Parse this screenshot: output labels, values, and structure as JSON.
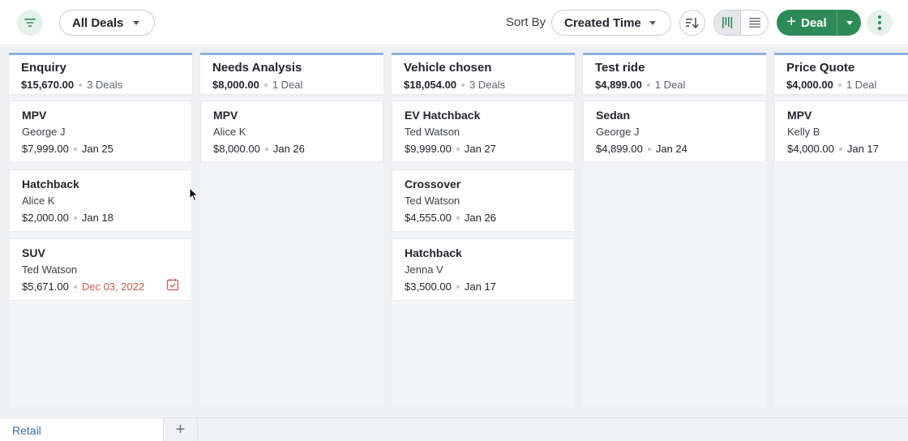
{
  "toolbar": {
    "filter_icon": "filter-funnel-icon",
    "view_label": "All Deals",
    "sort_by_label": "Sort By",
    "sort_value": "Created Time",
    "sort_direction_icon": "sort-descending-icon",
    "view_modes": [
      "kanban-view-icon",
      "list-view-icon"
    ],
    "add_deal_label": "Deal",
    "more_icon": "more-vertical-icon",
    "accent_color": "#2e8b57"
  },
  "board": {
    "column_accent": "#8fb1e0",
    "columns": [
      {
        "title": "Enquiry",
        "amount": "$15,670.00",
        "count": "3 Deals",
        "cards": [
          {
            "title": "MPV",
            "contact": "George J",
            "amount": "$7,999.00",
            "date": "Jan 25"
          },
          {
            "title": "Hatchback",
            "contact": "Alice K",
            "amount": "$2,000.00",
            "date": "Jan 18"
          },
          {
            "title": "SUV",
            "contact": "Ted Watson",
            "amount": "$5,671.00",
            "date": "Dec 03, 2022",
            "overdue": true
          }
        ]
      },
      {
        "title": "Needs Analysis",
        "amount": "$8,000.00",
        "count": "1 Deal",
        "cards": [
          {
            "title": "MPV",
            "contact": "Alice K",
            "amount": "$8,000.00",
            "date": "Jan 26"
          }
        ]
      },
      {
        "title": "Vehicle chosen",
        "amount": "$18,054.00",
        "count": "3 Deals",
        "cards": [
          {
            "title": "EV Hatchback",
            "contact": "Ted Watson",
            "amount": "$9,999.00",
            "date": "Jan 27"
          },
          {
            "title": "Crossover",
            "contact": "Ted Watson",
            "amount": "$4,555.00",
            "date": "Jan 26"
          },
          {
            "title": "Hatchback",
            "contact": "Jenna V",
            "amount": "$3,500.00",
            "date": "Jan 17"
          }
        ]
      },
      {
        "title": "Test ride",
        "amount": "$4,899.00",
        "count": "1 Deal",
        "cards": [
          {
            "title": "Sedan",
            "contact": "George J",
            "amount": "$4,899.00",
            "date": "Jan 24"
          }
        ]
      },
      {
        "title": "Price Quote",
        "amount": "$4,000.00",
        "count": "1 Deal",
        "cards": [
          {
            "title": "MPV",
            "contact": "Kelly B",
            "amount": "$4,000.00",
            "date": "Jan 17"
          }
        ]
      }
    ]
  },
  "tabs": {
    "items": [
      {
        "label": "Retail"
      }
    ],
    "add_icon": "plus-icon"
  }
}
